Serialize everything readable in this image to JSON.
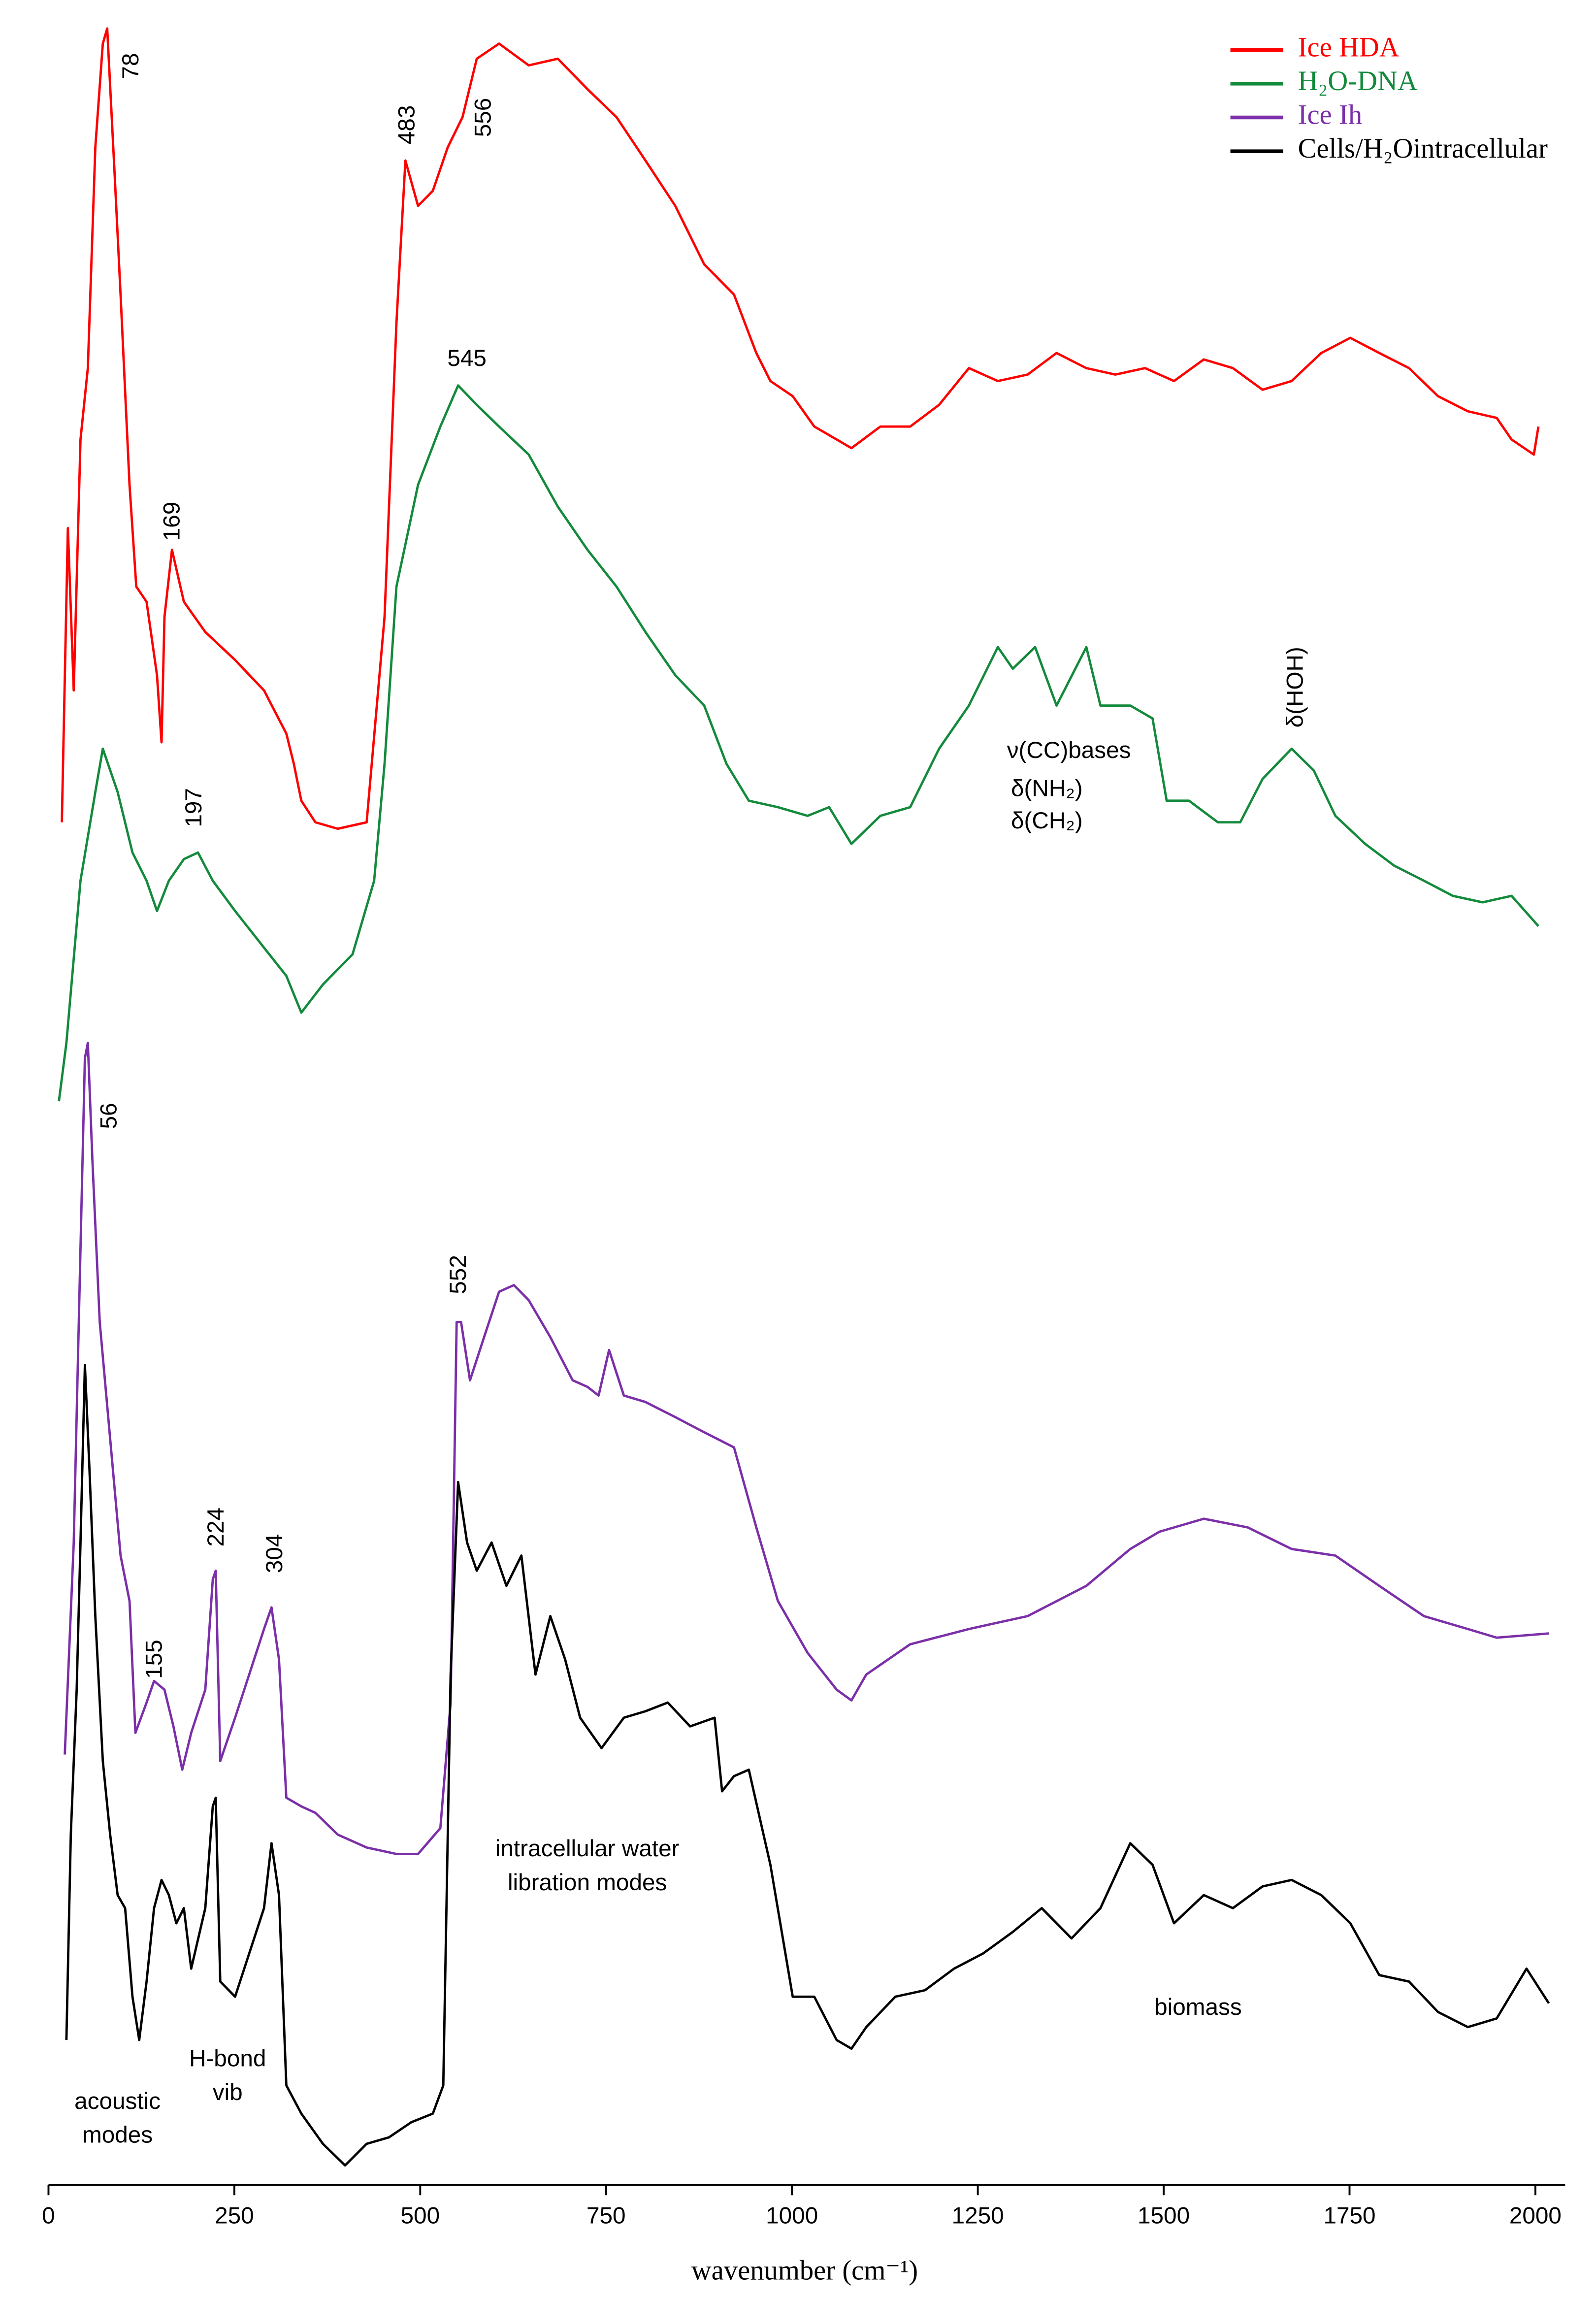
{
  "chart_data": {
    "type": "line",
    "xlabel": "wavenumber (cm⁻¹)",
    "xlim": [
      0,
      2040
    ],
    "xticks": [
      0,
      250,
      500,
      750,
      1000,
      1250,
      1500,
      1750,
      2000
    ],
    "ylim": [
      0,
      100
    ],
    "grid": false,
    "legend": "upper right",
    "series": [
      {
        "name": "Ice HDA",
        "color": "#ff0000",
        "x": [
          18,
          26,
          34,
          43,
          53,
          63,
          73,
          79,
          89,
          97,
          109,
          118,
          132,
          146,
          152,
          156,
          166,
          182,
          211,
          251,
          290,
          320,
          330,
          340,
          359,
          389,
          428,
          452,
          468,
          480,
          497,
          517,
          537,
          557,
          576,
          606,
          646,
          685,
          725,
          764,
          803,
          843,
          882,
          922,
          952,
          971,
          1001,
          1030,
          1060,
          1080,
          1119,
          1159,
          1198,
          1238,
          1277,
          1317,
          1356,
          1396,
          1435,
          1475,
          1514,
          1554,
          1593,
          1633,
          1672,
          1712,
          1751,
          1790,
          1830,
          1869,
          1909,
          1948,
          1968,
          1998,
          2004
        ],
        "values": [
          63.0,
          76.6,
          69.1,
          80.7,
          84.0,
          94.2,
          99.0,
          99.7,
          92.9,
          87.4,
          78.6,
          73.9,
          73.2,
          69.8,
          66.7,
          72.5,
          75.6,
          73.2,
          71.8,
          70.5,
          69.1,
          67.1,
          65.7,
          64.0,
          63.0,
          62.7,
          63.0,
          72.5,
          86.1,
          93.6,
          91.5,
          92.2,
          94.2,
          95.6,
          98.3,
          99.0,
          98.0,
          98.3,
          96.9,
          95.6,
          93.6,
          91.5,
          88.8,
          87.4,
          84.7,
          83.4,
          82.7,
          81.3,
          80.7,
          80.3,
          81.3,
          81.3,
          82.3,
          84.0,
          83.4,
          83.7,
          84.7,
          84.0,
          83.7,
          84.0,
          83.4,
          84.4,
          84.0,
          83.0,
          83.4,
          84.7,
          85.4,
          84.7,
          84.0,
          82.7,
          82.0,
          81.7,
          80.7,
          80.0,
          81.3
        ]
      },
      {
        "name": "H₂O-DNA",
        "color": "#138a3c",
        "x": [
          14,
          24,
          43,
          63,
          73,
          93,
          113,
          132,
          146,
          162,
          182,
          201,
          221,
          251,
          290,
          320,
          340,
          369,
          409,
          438,
          452,
          468,
          497,
          527,
          551,
          576,
          606,
          646,
          685,
          725,
          764,
          803,
          843,
          882,
          912,
          942,
          981,
          1021,
          1050,
          1080,
          1119,
          1159,
          1198,
          1238,
          1277,
          1297,
          1327,
          1356,
          1396,
          1415,
          1455,
          1485,
          1504,
          1534,
          1573,
          1603,
          1633,
          1672,
          1702,
          1731,
          1771,
          1810,
          1850,
          1889,
          1929,
          1968,
          2004
        ],
        "values": [
          50.1,
          52.8,
          60.3,
          64.4,
          66.4,
          64.4,
          61.6,
          60.3,
          58.9,
          60.3,
          61.3,
          61.6,
          60.3,
          58.9,
          57.2,
          55.9,
          54.2,
          55.5,
          56.9,
          60.3,
          65.7,
          73.9,
          78.6,
          81.3,
          83.2,
          82.3,
          81.3,
          80.0,
          77.6,
          75.6,
          73.9,
          71.8,
          69.8,
          68.4,
          65.7,
          64.0,
          63.7,
          63.3,
          63.7,
          62.0,
          63.3,
          63.7,
          66.4,
          68.4,
          71.1,
          70.1,
          71.1,
          68.4,
          71.1,
          68.4,
          68.4,
          67.8,
          64.0,
          64.0,
          63.0,
          63.0,
          65.0,
          66.4,
          65.4,
          63.3,
          62.0,
          61.0,
          60.3,
          59.6,
          59.3,
          59.6,
          58.2
        ]
      },
      {
        "name": "Ice Ih",
        "color": "#7b2fa8",
        "x": [
          22,
          34,
          43,
          49,
          53,
          59,
          69,
          83,
          97,
          109,
          117,
          132,
          142,
          156,
          168,
          180,
          192,
          211,
          221,
          225,
          231,
          251,
          270,
          290,
          300,
          310,
          320,
          340,
          359,
          389,
          428,
          468,
          497,
          527,
          541,
          549,
          555,
          567,
          586,
          606,
          626,
          646,
          675,
          705,
          725,
          740,
          754,
          774,
          803,
          843,
          882,
          922,
          952,
          981,
          1021,
          1060,
          1080,
          1100,
          1159,
          1238,
          1317,
          1396,
          1455,
          1494,
          1554,
          1613,
          1672,
          1731,
          1790,
          1850,
          1909,
          1948,
          2018
        ],
        "values": [
          19.9,
          29.7,
          43.3,
          52.1,
          52.8,
          47.4,
          39.9,
          34.5,
          29.1,
          27.0,
          20.9,
          22.3,
          23.3,
          22.9,
          21.2,
          19.2,
          20.9,
          22.9,
          28.0,
          28.4,
          19.6,
          21.6,
          23.6,
          25.7,
          26.7,
          24.3,
          17.9,
          17.5,
          17.2,
          16.2,
          15.6,
          15.3,
          15.3,
          16.5,
          22.3,
          39.9,
          39.9,
          37.2,
          39.2,
          41.3,
          41.6,
          40.9,
          39.2,
          37.2,
          36.9,
          36.5,
          38.6,
          36.5,
          36.2,
          35.5,
          34.8,
          34.1,
          30.4,
          27.0,
          24.6,
          22.9,
          22.4,
          23.6,
          25.0,
          25.7,
          26.3,
          27.7,
          29.4,
          30.2,
          30.8,
          30.4,
          29.4,
          29.1,
          27.7,
          26.3,
          25.7,
          25.3,
          25.5
        ]
      },
      {
        "name": "Cells/H₂Ointracellular",
        "color": "#000000",
        "x": [
          24,
          30,
          38,
          43,
          49,
          55,
          63,
          73,
          83,
          93,
          103,
          113,
          122,
          132,
          142,
          152,
          162,
          172,
          182,
          192,
          211,
          221,
          225,
          231,
          251,
          270,
          290,
          300,
          310,
          320,
          340,
          369,
          399,
          428,
          458,
          488,
          517,
          531,
          541,
          551,
          563,
          576,
          596,
          616,
          636,
          655,
          675,
          695,
          715,
          744,
          774,
          803,
          833,
          863,
          896,
          906,
          922,
          942,
          971,
          1001,
          1030,
          1060,
          1080,
          1100,
          1139,
          1179,
          1218,
          1257,
          1297,
          1336,
          1376,
          1415,
          1455,
          1485,
          1514,
          1554,
          1593,
          1633,
          1672,
          1712,
          1751,
          1790,
          1830,
          1869,
          1909,
          1948,
          1988,
          2018
        ],
        "values": [
          6.7,
          16.2,
          22.9,
          29.7,
          37.9,
          33.1,
          26.3,
          19.6,
          16.2,
          13.4,
          12.8,
          8.7,
          6.7,
          9.4,
          12.8,
          14.1,
          13.4,
          12.1,
          12.8,
          10.0,
          12.8,
          17.5,
          17.9,
          9.4,
          8.7,
          10.7,
          12.8,
          15.8,
          13.4,
          4.6,
          3.3,
          1.9,
          0.9,
          1.9,
          2.2,
          2.9,
          3.3,
          4.6,
          23.6,
          32.5,
          29.7,
          28.4,
          29.7,
          27.7,
          29.1,
          23.6,
          26.3,
          24.3,
          21.6,
          20.2,
          21.6,
          21.9,
          22.3,
          21.2,
          21.6,
          18.2,
          18.9,
          19.2,
          14.8,
          8.7,
          8.7,
          6.7,
          6.3,
          7.3,
          8.7,
          9.0,
          10.0,
          10.7,
          11.7,
          12.8,
          11.4,
          12.8,
          15.8,
          14.8,
          12.1,
          13.4,
          12.8,
          13.8,
          14.1,
          13.4,
          12.1,
          9.7,
          9.4,
          8.0,
          7.3,
          7.7,
          10.0,
          8.4
        ]
      }
    ],
    "annotations": [
      "78",
      "483",
      "556",
      "169",
      "545",
      "197",
      "56",
      "552",
      "155",
      "224",
      "304",
      "ν(CC)bases",
      "δ(NH₂)",
      "δ(CH₂)",
      "δ(HOH)",
      "intracellular water",
      "libration modes",
      "acoustic",
      "modes",
      "H-bond",
      "vib",
      "biomass"
    ]
  }
}
